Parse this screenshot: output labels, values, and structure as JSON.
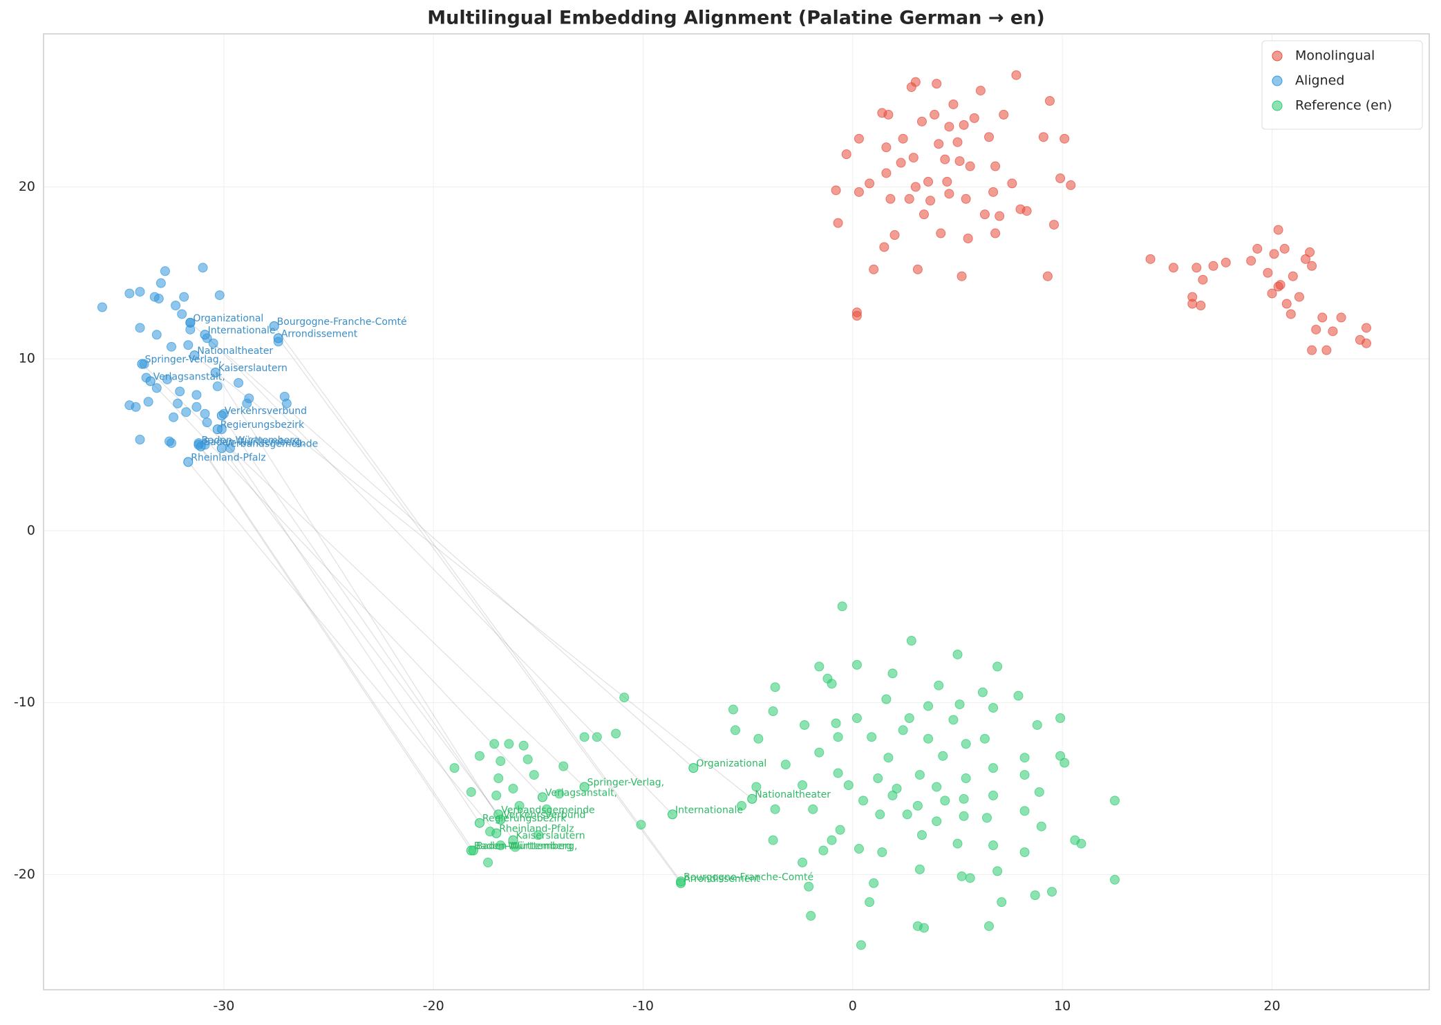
{
  "chart_data": {
    "type": "scatter",
    "title": "Multilingual Embedding Alignment (Palatine German → en)",
    "xlim": [
      -38.6,
      27.5
    ],
    "ylim": [
      -26.7,
      28.9
    ],
    "xticks": [
      -30,
      -20,
      -10,
      0,
      10,
      20
    ],
    "yticks": [
      -20,
      -10,
      0,
      10,
      20
    ],
    "grid": true,
    "legend": "upper right",
    "series": [
      {
        "name": "Monolingual",
        "color": "#e74c3c",
        "x": [
          -0.8,
          -0.7,
          -0.3,
          0.2,
          0.2,
          0.3,
          0.3,
          0.8,
          1.0,
          1.4,
          1.5,
          1.6,
          1.7,
          1.8,
          2.0,
          2.3,
          2.4,
          2.7,
          2.8,
          2.9,
          3.0,
          3.1,
          3.3,
          3.4,
          3.6,
          3.7,
          3.9,
          4.0,
          4.1,
          4.2,
          4.4,
          4.6,
          4.6,
          4.8,
          5.0,
          5.2,
          5.3,
          5.4,
          5.5,
          5.6,
          5.8,
          6.1,
          6.3,
          6.5,
          6.7,
          6.8,
          7.0,
          7.2,
          7.6,
          7.8,
          8.0,
          8.3,
          9.1,
          9.3,
          9.4,
          9.6,
          9.9,
          10.1,
          10.4,
          5.1,
          4.5,
          3.0,
          1.6,
          6.8,
          14.2,
          15.3,
          16.2,
          16.4,
          16.7,
          17.2,
          17.8,
          19.0,
          19.3,
          19.8,
          20.0,
          20.1,
          20.3,
          20.4,
          20.6,
          20.7,
          20.9,
          21.0,
          21.3,
          21.6,
          21.8,
          21.9,
          22.1,
          22.4,
          22.6,
          22.9,
          23.3,
          24.2,
          24.5,
          24.5,
          16.2,
          16.6,
          21.9,
          20.3
        ],
        "values": [
          19.8,
          17.9,
          21.9,
          12.7,
          12.5,
          22.8,
          19.7,
          20.2,
          15.2,
          24.3,
          16.5,
          22.3,
          24.2,
          19.3,
          17.2,
          21.4,
          22.8,
          19.3,
          25.8,
          21.7,
          26.1,
          15.2,
          23.8,
          18.4,
          20.3,
          19.2,
          24.2,
          26.0,
          22.5,
          17.3,
          21.6,
          23.5,
          19.6,
          24.8,
          22.6,
          14.8,
          23.6,
          19.3,
          17.0,
          21.2,
          24.0,
          25.6,
          18.4,
          22.9,
          19.7,
          17.3,
          18.3,
          24.2,
          20.2,
          26.5,
          18.7,
          18.6,
          22.9,
          14.8,
          25.0,
          17.8,
          20.5,
          22.8,
          20.1,
          21.5,
          20.3,
          20.0,
          20.8,
          21.2,
          15.8,
          15.3,
          13.6,
          15.3,
          14.6,
          15.4,
          15.6,
          15.7,
          16.4,
          15.0,
          13.8,
          16.1,
          17.5,
          14.3,
          16.4,
          13.2,
          12.6,
          14.8,
          13.6,
          15.8,
          16.2,
          10.5,
          11.7,
          12.4,
          10.5,
          11.6,
          12.4,
          11.1,
          11.8,
          10.9,
          13.2,
          13.1,
          15.4,
          14.2
        ]
      },
      {
        "name": "Aligned",
        "color": "#3498db",
        "x": [
          -35.8,
          -34.5,
          -34.0,
          -34.0,
          -34.0,
          -34.2,
          -34.5,
          -33.8,
          -33.7,
          -33.6,
          -33.3,
          -33.2,
          -33.2,
          -33.0,
          -32.8,
          -32.7,
          -32.6,
          -32.5,
          -32.4,
          -32.3,
          -32.2,
          -32.1,
          -32.0,
          -31.9,
          -31.8,
          -31.7,
          -31.6,
          -31.3,
          -31.3,
          -31.0,
          -30.9,
          -30.8,
          -30.8,
          -30.5,
          -30.3,
          -30.2,
          -30.1,
          -30.0,
          -29.7,
          -29.3,
          -28.9,
          -28.8,
          -27.4,
          -27.1,
          -27.0,
          -31.2,
          -30.9,
          -33.1,
          -31.6,
          -32.5
        ],
        "values": [
          13.0,
          13.8,
          13.9,
          11.8,
          5.3,
          7.2,
          7.3,
          9.7,
          8.9,
          7.5,
          13.6,
          11.4,
          8.3,
          14.4,
          15.1,
          8.8,
          5.2,
          10.7,
          6.6,
          13.1,
          7.4,
          8.1,
          12.6,
          13.6,
          6.9,
          10.8,
          11.7,
          7.2,
          7.9,
          15.3,
          6.8,
          11.2,
          6.3,
          10.9,
          8.4,
          13.7,
          5.9,
          6.8,
          4.8,
          8.6,
          7.4,
          7.7,
          11.0,
          7.8,
          7.4,
          5.1,
          5.0,
          13.5,
          12.1,
          5.1
        ]
      },
      {
        "name": "Reference (en)",
        "color": "#2ecc71",
        "x": [
          -0.5,
          2.8,
          5.0,
          6.9,
          -1.6,
          0.2,
          -1.2,
          1.9,
          -1.0,
          4.1,
          -3.7,
          6.2,
          7.9,
          -5.7,
          -3.8,
          1.6,
          3.6,
          5.1,
          0.2,
          -2.3,
          -0.8,
          2.7,
          4.8,
          6.7,
          8.8,
          9.9,
          -5.6,
          -4.5,
          -1.6,
          -0.7,
          0.9,
          1.7,
          2.4,
          3.6,
          4.3,
          5.4,
          6.3,
          8.2,
          9.9,
          10.1,
          -3.2,
          -0.7,
          1.2,
          2.1,
          3.2,
          4.0,
          5.4,
          6.7,
          8.2,
          -4.6,
          -2.4,
          -0.2,
          0.5,
          1.9,
          3.1,
          4.4,
          5.3,
          6.7,
          8.9,
          -5.3,
          -3.7,
          -1.9,
          -0.6,
          1.3,
          2.6,
          4.0,
          5.3,
          6.4,
          8.2,
          -3.8,
          -1.0,
          0.3,
          1.4,
          3.3,
          5.0,
          6.7,
          9.0,
          10.6,
          10.9,
          -2.4,
          -1.4,
          3.2,
          6.9,
          8.2,
          -2.1,
          1.0,
          5.2,
          5.6,
          9.5,
          8.7,
          0.8,
          7.1,
          -2.0,
          3.1,
          3.4,
          6.5,
          0.4,
          12.5,
          12.5,
          -19.0,
          -18.2,
          -17.8,
          -17.1,
          -16.9,
          -16.4,
          -16.2,
          -15.7,
          -15.5,
          -15.2,
          -14.6,
          -14.0,
          -13.8,
          -12.8,
          -12.2,
          -11.3,
          -10.9,
          -10.1,
          -17.3,
          -16.8,
          -16.1,
          -15.0,
          -17.0,
          -16.8,
          -15.9,
          -17.4
        ],
        "values": [
          -4.4,
          -6.4,
          -7.2,
          -7.9,
          -7.9,
          -7.8,
          -8.6,
          -8.3,
          -8.9,
          -9.0,
          -9.1,
          -9.4,
          -9.6,
          -10.4,
          -10.5,
          -9.8,
          -10.2,
          -10.1,
          -10.9,
          -11.3,
          -11.2,
          -10.9,
          -11.0,
          -10.3,
          -11.3,
          -10.9,
          -11.6,
          -12.1,
          -12.9,
          -12.0,
          -12.0,
          -13.2,
          -11.6,
          -12.1,
          -13.1,
          -12.4,
          -12.1,
          -13.2,
          -13.1,
          -13.5,
          -13.6,
          -14.1,
          -14.4,
          -15.0,
          -14.2,
          -14.9,
          -14.4,
          -13.8,
          -14.2,
          -14.9,
          -14.8,
          -14.8,
          -15.7,
          -15.4,
          -16.0,
          -15.7,
          -15.6,
          -15.4,
          -15.2,
          -16.0,
          -16.2,
          -16.2,
          -17.4,
          -16.5,
          -16.5,
          -16.9,
          -16.6,
          -16.7,
          -16.3,
          -18.0,
          -18.0,
          -18.5,
          -18.7,
          -17.7,
          -18.2,
          -18.3,
          -17.2,
          -18.0,
          -18.2,
          -19.3,
          -18.6,
          -19.7,
          -19.8,
          -18.7,
          -20.7,
          -20.5,
          -20.1,
          -20.2,
          -21.0,
          -21.2,
          -21.6,
          -21.6,
          -22.4,
          -23.0,
          -23.1,
          -23.0,
          -24.1,
          -15.7,
          -20.3,
          -13.8,
          -15.2,
          -13.1,
          -12.4,
          -14.4,
          -12.4,
          -15.0,
          -12.5,
          -13.3,
          -14.2,
          -16.2,
          -15.3,
          -13.7,
          -12.0,
          -12.0,
          -11.8,
          -9.7,
          -17.1,
          -17.5,
          -18.3,
          -18.4,
          -17.7,
          -15.4,
          -13.4,
          -16.0,
          -19.3
        ]
      }
    ],
    "annotations": [
      {
        "label": "Organizational",
        "aligned_x": -31.6,
        "aligned_y": 12.1,
        "reference_x": -7.6,
        "reference_y": -13.8
      },
      {
        "label": "Bourgogne-Franche-Comté",
        "aligned_x": -27.6,
        "aligned_y": 11.9,
        "reference_x": -8.2,
        "reference_y": -20.4
      },
      {
        "label": "Internationale",
        "aligned_x": -30.9,
        "aligned_y": 11.4,
        "reference_x": -8.6,
        "reference_y": -16.5
      },
      {
        "label": "Arrondissement",
        "aligned_x": -27.4,
        "aligned_y": 11.2,
        "reference_x": -8.2,
        "reference_y": -20.5
      },
      {
        "label": "Nationaltheater",
        "aligned_x": -31.4,
        "aligned_y": 10.2,
        "reference_x": -4.8,
        "reference_y": -15.6
      },
      {
        "label": "Springer-Verlag,",
        "aligned_x": -33.9,
        "aligned_y": 9.7,
        "reference_x": -12.8,
        "reference_y": -14.9
      },
      {
        "label": "Kaiserslautern",
        "aligned_x": -30.4,
        "aligned_y": 9.2,
        "reference_x": -16.2,
        "reference_y": -18.0
      },
      {
        "label": "Verlagsanstalt,",
        "aligned_x": -33.5,
        "aligned_y": 8.7,
        "reference_x": -14.8,
        "reference_y": -15.5
      },
      {
        "label": "Verkehrsverbund",
        "aligned_x": -30.1,
        "aligned_y": 6.7,
        "reference_x": -16.8,
        "reference_y": -16.8
      },
      {
        "label": "Regierungsbezirk",
        "aligned_x": -30.3,
        "aligned_y": 5.9,
        "reference_x": -17.8,
        "reference_y": -17.0
      },
      {
        "label": "Baden-Württemberg",
        "aligned_x": -31.2,
        "aligned_y": 5.0,
        "reference_x": -18.2,
        "reference_y": -18.6
      },
      {
        "label": "Baden-Württemberg,",
        "aligned_x": -31.1,
        "aligned_y": 4.9,
        "reference_x": -18.1,
        "reference_y": -18.6
      },
      {
        "label": "Verbandsgemeinde",
        "aligned_x": -30.1,
        "aligned_y": 4.8,
        "reference_x": -16.9,
        "reference_y": -16.5
      },
      {
        "label": "Rheinland-Pfalz",
        "aligned_x": -31.7,
        "aligned_y": 4.0,
        "reference_x": -17.0,
        "reference_y": -17.6
      }
    ]
  }
}
